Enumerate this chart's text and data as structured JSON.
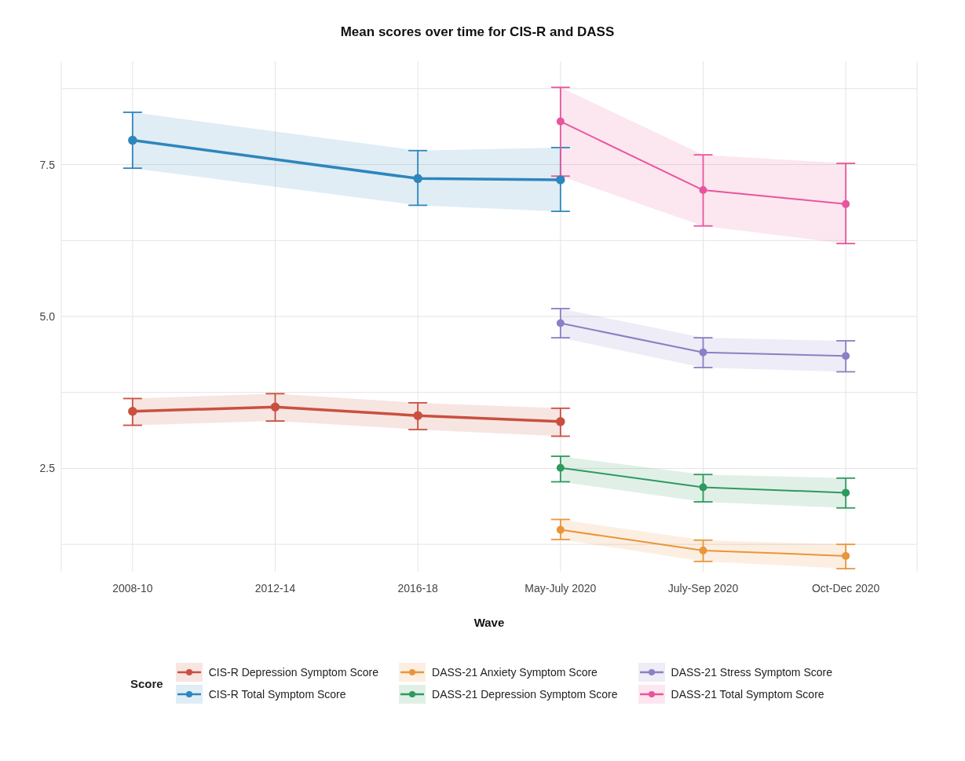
{
  "chart_data": {
    "type": "line",
    "title": "Mean scores over time for CIS-R and DASS",
    "xlabel": "Wave",
    "legend_title": "Score",
    "categories": [
      "2008-10",
      "2012-14",
      "2016-18",
      "May-July 2020",
      "July-Sep 2020",
      "Oct-Dec 2020"
    ],
    "ylim": [
      0.8,
      9.2
    ],
    "yticks": [
      {
        "value": 1.25,
        "label": null
      },
      2.5,
      {
        "value": 3.75,
        "label": null
      },
      {
        "value": 5,
        "label": "5.0"
      },
      {
        "value": 6.25,
        "label": null
      },
      7.5,
      {
        "value": 8.75,
        "label": null
      }
    ],
    "grid": true,
    "legend": "bottom",
    "marker": "circle",
    "line_style": "solid",
    "series": [
      {
        "name": "CIS-R Depression Symptom Score",
        "color": "#c9503f",
        "values": [
          3.44,
          3.51,
          3.37,
          3.27,
          null,
          null
        ],
        "errors": [
          [
            3.21,
            3.65
          ],
          [
            3.28,
            3.73
          ],
          [
            3.14,
            3.58
          ],
          [
            3.03,
            3.49
          ],
          null,
          null
        ],
        "lower": [
          3.21,
          3.28,
          3.14,
          3.03,
          null,
          null
        ],
        "upper": [
          3.65,
          3.73,
          3.58,
          3.49,
          null,
          null
        ]
      },
      {
        "name": "CIS-R Total Symptom Score",
        "color": "#2e86bd",
        "values": [
          7.9,
          null,
          7.27,
          7.25,
          null,
          null
        ],
        "errors": [
          [
            7.44,
            8.36
          ],
          null,
          [
            6.83,
            7.73
          ],
          [
            6.73,
            7.78
          ],
          null,
          null
        ],
        "lower": [
          7.44,
          null,
          6.83,
          6.73,
          null,
          null
        ],
        "upper": [
          8.36,
          null,
          7.73,
          7.78,
          null,
          null
        ]
      },
      {
        "name": "DASS-21 Anxiety Symptom Score",
        "color": "#e8963a",
        "values": [
          null,
          null,
          null,
          1.49,
          1.15,
          1.06
        ],
        "errors": [
          null,
          null,
          null,
          [
            1.33,
            1.66
          ],
          [
            0.97,
            1.32
          ],
          [
            0.85,
            1.25
          ]
        ],
        "lower": [
          null,
          null,
          null,
          1.33,
          0.97,
          0.85
        ],
        "upper": [
          null,
          null,
          null,
          1.66,
          1.32,
          1.25
        ]
      },
      {
        "name": "DASS-21 Depression Symptom Score",
        "color": "#2e9a5e",
        "values": [
          null,
          null,
          null,
          2.51,
          2.19,
          2.1
        ],
        "errors": [
          null,
          null,
          null,
          [
            2.28,
            2.7
          ],
          [
            1.95,
            2.4
          ],
          [
            1.85,
            2.34
          ]
        ],
        "lower": [
          null,
          null,
          null,
          2.28,
          1.95,
          1.85
        ],
        "upper": [
          null,
          null,
          null,
          2.7,
          2.4,
          2.34
        ]
      },
      {
        "name": "DASS-21 Stress Symptom Score",
        "color": "#8a80c4",
        "values": [
          null,
          null,
          null,
          4.89,
          4.41,
          4.35
        ],
        "errors": [
          null,
          null,
          null,
          [
            4.65,
            5.13
          ],
          [
            4.16,
            4.65
          ],
          [
            4.09,
            4.6
          ]
        ],
        "lower": [
          null,
          null,
          null,
          4.65,
          4.16,
          4.09
        ],
        "upper": [
          null,
          null,
          null,
          5.13,
          4.65,
          4.6
        ]
      },
      {
        "name": "DASS-21 Total Symptom Score",
        "color": "#e8559c",
        "values": [
          null,
          null,
          null,
          8.21,
          7.08,
          6.85
        ],
        "errors": [
          null,
          null,
          null,
          [
            7.31,
            8.77
          ],
          [
            6.49,
            7.66
          ],
          [
            6.2,
            7.52
          ]
        ],
        "lower": [
          null,
          null,
          null,
          7.31,
          6.49,
          6.2
        ],
        "upper": [
          null,
          null,
          null,
          8.77,
          7.66,
          7.52
        ]
      }
    ]
  }
}
